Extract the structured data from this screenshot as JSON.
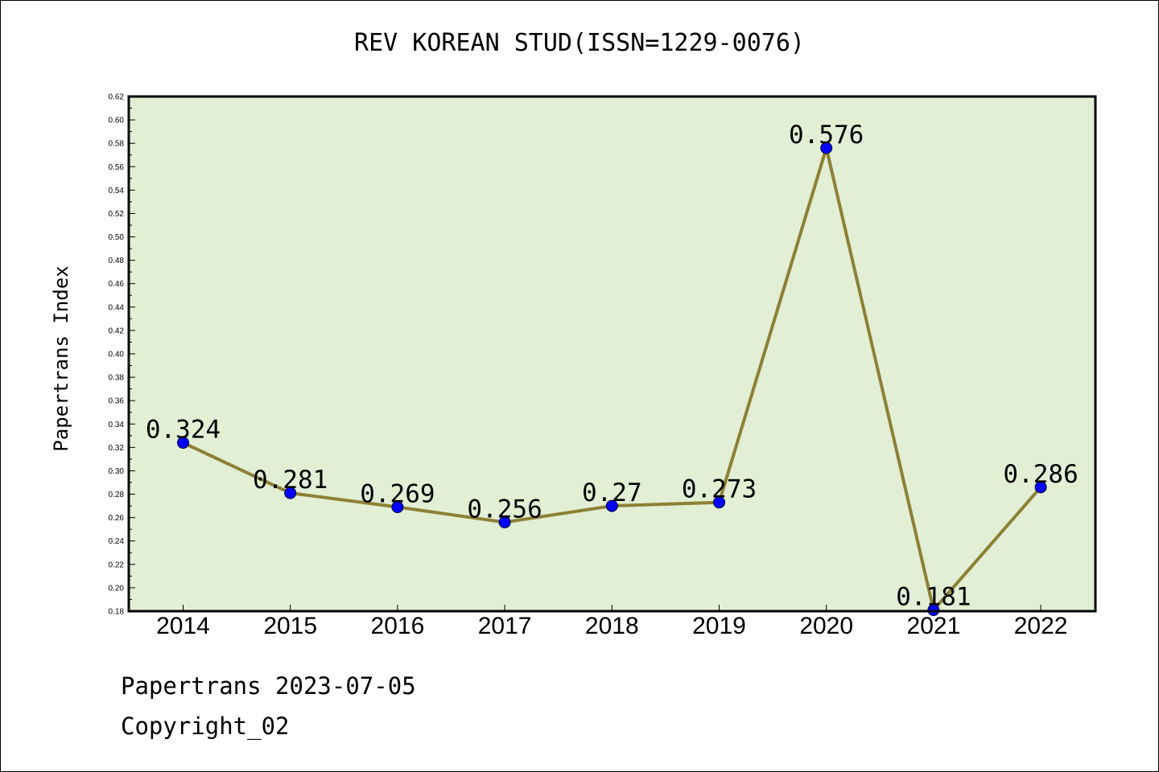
{
  "title": "REV KOREAN STUD(ISSN=1229-0076)",
  "footer": {
    "line1": "Papertrans 2023-07-05",
    "line2": "Copyright_02"
  },
  "colors": {
    "plot_bg": "#e2efd5",
    "line": "#8c8035",
    "marker": "#0000ff"
  },
  "chart_data": {
    "type": "line",
    "title": "REV KOREAN STUD(ISSN=1229-0076)",
    "xlabel": "",
    "ylabel": "Papertrans Index",
    "categories": [
      "2014",
      "2015",
      "2016",
      "2017",
      "2018",
      "2019",
      "2020",
      "2021",
      "2022"
    ],
    "values": [
      0.324,
      0.281,
      0.269,
      0.256,
      0.27,
      0.273,
      0.576,
      0.181,
      0.286
    ],
    "data_labels": [
      "0.324",
      "0.281",
      "0.269",
      "0.256",
      "0.27",
      "0.273",
      "0.576",
      "0.181",
      "0.286"
    ],
    "ylim": [
      0.18,
      0.62
    ],
    "yticks": [
      "0.18",
      "0.20",
      "0.22",
      "0.24",
      "0.26",
      "0.28",
      "0.30",
      "0.32",
      "0.34",
      "0.36",
      "0.38",
      "0.40",
      "0.42",
      "0.44",
      "0.46",
      "0.48",
      "0.50",
      "0.52",
      "0.54",
      "0.56",
      "0.58",
      "0.60",
      "0.62"
    ],
    "grid": false,
    "legend": "none"
  }
}
